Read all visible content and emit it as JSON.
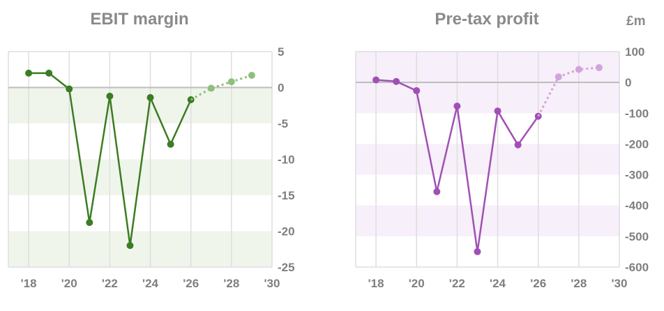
{
  "chart_data": [
    {
      "type": "line",
      "title": "EBIT margin",
      "unit": "",
      "x": [
        2018,
        2019,
        2020,
        2021,
        2022,
        2023,
        2024,
        2025,
        2026,
        2027,
        2028,
        2029
      ],
      "series": [
        {
          "name": "",
          "kind": "actual",
          "x": [
            2018,
            2019,
            2020,
            2021,
            2022,
            2023,
            2024,
            2025,
            2026
          ],
          "values": [
            2.0,
            2.0,
            -0.2,
            -18.8,
            -1.2,
            -22.0,
            -1.4,
            -7.9,
            -1.7
          ]
        },
        {
          "name": "",
          "kind": "forecast",
          "x": [
            2026,
            2027,
            2028,
            2029
          ],
          "values": [
            -1.7,
            -0.1,
            0.8,
            1.7
          ]
        }
      ],
      "xlim": [
        2017,
        2030
      ],
      "ylim": [
        -25,
        5
      ],
      "xticks": [
        2018,
        2020,
        2022,
        2024,
        2026,
        2028,
        2030
      ],
      "xtick_labels": [
        "'18",
        "'20",
        "'22",
        "'24",
        "'26",
        "'28",
        "'30"
      ],
      "yticks": [
        5,
        0,
        -5,
        -10,
        -15,
        -20,
        -25
      ],
      "ytick_labels": [
        "5",
        "0",
        "-5",
        "-10",
        "-15",
        "-20",
        "-25"
      ],
      "colors": {
        "line": "#3a7d22",
        "forecast": "#8fbf7c",
        "band": "#f0f5ec",
        "grid": "#dedede",
        "zero": "#bdbdbd"
      },
      "grid": true
    },
    {
      "type": "line",
      "title": "Pre-tax profit",
      "unit": "£m",
      "x": [
        2018,
        2019,
        2020,
        2021,
        2022,
        2023,
        2024,
        2025,
        2026,
        2027,
        2028,
        2029
      ],
      "series": [
        {
          "name": "",
          "kind": "actual",
          "x": [
            2018,
            2019,
            2020,
            2021,
            2022,
            2023,
            2024,
            2025,
            2026
          ],
          "values": [
            8,
            3,
            -27,
            -355,
            -77,
            -550,
            -93,
            -203,
            -110
          ]
        },
        {
          "name": "",
          "kind": "forecast",
          "x": [
            2026,
            2027,
            2028,
            2029
          ],
          "values": [
            -110,
            18,
            42,
            48
          ]
        }
      ],
      "xlim": [
        2017,
        2030
      ],
      "ylim": [
        -600,
        100
      ],
      "xticks": [
        2018,
        2020,
        2022,
        2024,
        2026,
        2028,
        2030
      ],
      "xtick_labels": [
        "'18",
        "'20",
        "'22",
        "'24",
        "'26",
        "'28",
        "'30"
      ],
      "yticks": [
        100,
        0,
        -100,
        -200,
        -300,
        -400,
        -500,
        -600
      ],
      "ytick_labels": [
        "100",
        "0",
        "-100",
        "-200",
        "-300",
        "-400",
        "-500",
        "-600"
      ],
      "colors": {
        "line": "#a050b4",
        "forecast": "#d1a4dc",
        "band": "#f7eff9",
        "grid": "#dedede",
        "zero": "#bdbdbd"
      },
      "grid": true
    }
  ]
}
